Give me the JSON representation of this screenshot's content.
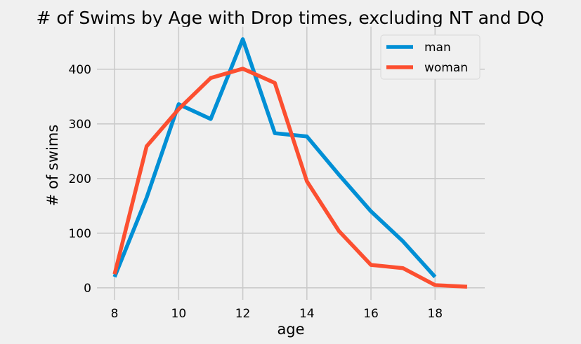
{
  "chart_data": {
    "type": "line",
    "title": "# of Swims by Age with Drop times, excluding NT and DQ",
    "xlabel": "age",
    "ylabel": "# of swims",
    "xlim": [
      7.45,
      19.55
    ],
    "ylim": [
      -22,
      478
    ],
    "xticks": [
      8,
      10,
      12,
      14,
      16,
      18
    ],
    "yticks": [
      0,
      100,
      200,
      300,
      400
    ],
    "grid": true,
    "legend_position": "top-right",
    "series": [
      {
        "name": "man",
        "color": "#008fd5",
        "x": [
          8,
          9,
          10,
          11,
          12,
          13,
          14,
          15,
          16,
          17,
          18
        ],
        "values": [
          20,
          165,
          336,
          309,
          455,
          283,
          277,
          207,
          140,
          85,
          20
        ]
      },
      {
        "name": "woman",
        "color": "#fc4f30",
        "x": [
          8,
          9,
          10,
          11,
          12,
          13,
          14,
          15,
          16,
          17,
          18,
          19
        ],
        "values": [
          25,
          259,
          327,
          384,
          401,
          375,
          195,
          104,
          42,
          36,
          5,
          2
        ]
      }
    ]
  }
}
